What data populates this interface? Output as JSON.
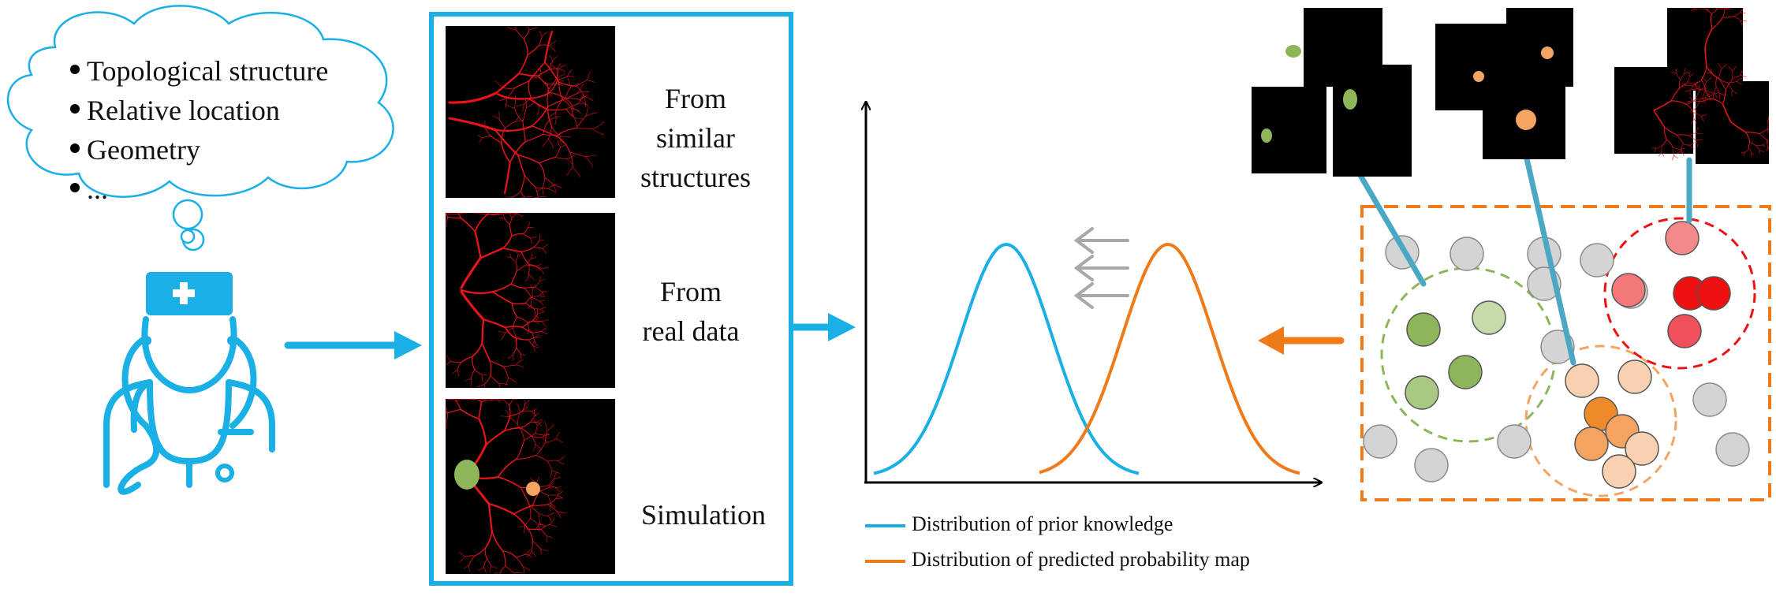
{
  "thought_cloud": {
    "items": [
      "Topological structure",
      "Relative location",
      "Geometry",
      "..."
    ]
  },
  "sources_panel": {
    "labels": [
      [
        "From",
        "similar",
        "structures"
      ],
      [
        "From",
        "real data"
      ],
      [
        "Simulation"
      ]
    ]
  },
  "legend": {
    "prior": "Distribution of prior knowledge",
    "predicted": "Distribution of predicted probability map"
  },
  "colors": {
    "blue": "#1ab0e6",
    "orange": "#ef7a1a",
    "green": "#8db55a",
    "red": "#ee1111",
    "gray": "#d4d4d4",
    "vessel": "#e8141a"
  }
}
